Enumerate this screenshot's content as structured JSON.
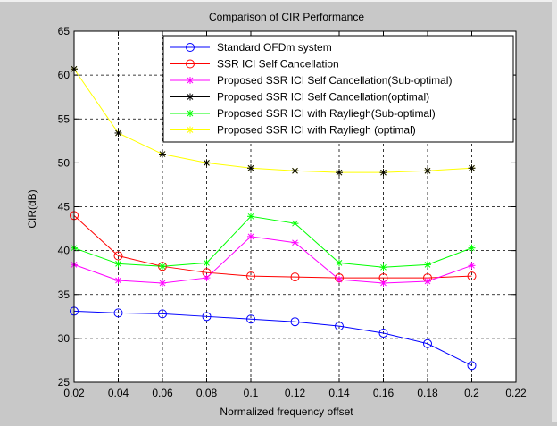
{
  "chart_data": {
    "type": "line",
    "title": "Comparison of CIR Performance",
    "xlabel": "Normalized frequency offset",
    "ylabel": "CIR(dB)",
    "xlim": [
      0.02,
      0.22
    ],
    "ylim": [
      25,
      65
    ],
    "xticks": [
      "0.02",
      "0.04",
      "0.06",
      "0.08",
      "0.1",
      "0.12",
      "0.14",
      "0.16",
      "0.18",
      "0.2",
      "0.22"
    ],
    "yticks": [
      "25",
      "30",
      "35",
      "40",
      "45",
      "50",
      "55",
      "60",
      "65"
    ],
    "grid": true,
    "legend_position": "top-right",
    "x": [
      0.02,
      0.04,
      0.06,
      0.08,
      0.1,
      0.12,
      0.14,
      0.16,
      0.18,
      0.2
    ],
    "series": [
      {
        "name": "Standard OFDm system",
        "color": "#0000ff",
        "marker": "circle",
        "values": [
          33.1,
          32.9,
          32.8,
          32.5,
          32.2,
          31.9,
          31.4,
          30.6,
          29.4,
          26.9
        ]
      },
      {
        "name": "SSR ICI Self Cancellation",
        "color": "#ff0000",
        "marker": "circle",
        "values": [
          44.0,
          39.4,
          38.2,
          37.5,
          37.1,
          37.0,
          36.9,
          36.9,
          36.9,
          37.1
        ]
      },
      {
        "name": "Proposed SSR ICI Self Cancellation(Sub-optimal)",
        "color": "#ff00ff",
        "marker": "star",
        "values": [
          38.4,
          36.6,
          36.3,
          36.9,
          41.6,
          40.9,
          36.7,
          36.3,
          36.5,
          38.3
        ]
      },
      {
        "name": "Proposed SSR ICI Self Cancellation(optimal)",
        "color": "#000000",
        "marker": "star",
        "values": [
          null,
          null,
          null,
          null,
          null,
          null,
          null,
          null,
          null,
          null
        ]
      },
      {
        "name": "Proposed SSR ICI with Rayliegh(Sub-optimal)",
        "color": "#00ff00",
        "marker": "star",
        "values": [
          40.3,
          38.5,
          38.2,
          38.6,
          43.9,
          43.1,
          38.6,
          38.1,
          38.4,
          40.3
        ]
      },
      {
        "name": "Proposed SSR ICI with Rayliegh (optimal)",
        "color": "#ffff00",
        "marker": "star",
        "values": [
          60.7,
          53.4,
          51.0,
          50.0,
          49.4,
          49.1,
          48.9,
          48.9,
          49.1,
          49.4
        ]
      }
    ],
    "black_marker_values": [
      60.7,
      53.4,
      51.0,
      50.0,
      49.4,
      49.1,
      48.9,
      48.9,
      49.1,
      49.4
    ]
  }
}
